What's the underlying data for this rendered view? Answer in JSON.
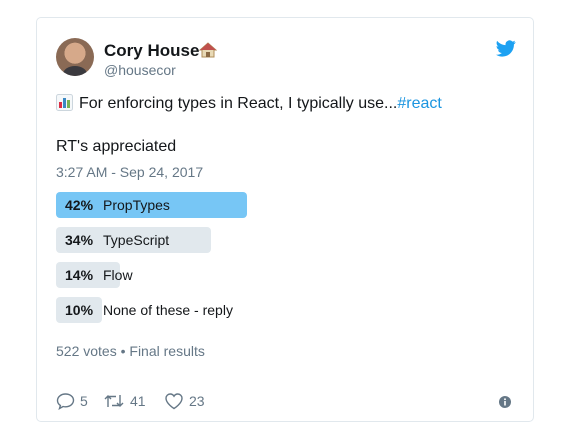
{
  "author": {
    "name": "Cory House",
    "handle": "@housecor",
    "name_emoji": "house-icon",
    "avatar": "avatar"
  },
  "tweet": {
    "text": "For enforcing types in React, I typically use...",
    "hashtag": "#react",
    "text_emoji": "bar-chart-icon",
    "rt_line": "RT's appreciated",
    "timestamp": "3:27 AM - Sep 24, 2017"
  },
  "poll": {
    "options": [
      {
        "percent": "42%",
        "share": 42,
        "label": "PropTypes",
        "winner": true
      },
      {
        "percent": "34%",
        "share": 34,
        "label": "TypeScript",
        "winner": false
      },
      {
        "percent": "14%",
        "share": 14,
        "label": "Flow",
        "winner": false
      },
      {
        "percent": "10%",
        "share": 10,
        "label": "None of these - reply",
        "winner": false
      }
    ],
    "summary": "522 votes • Final results"
  },
  "actions": {
    "replies": "5",
    "retweets": "41",
    "likes": "23"
  },
  "colors": {
    "accent": "#1da1f2",
    "winner_bar": "#77c6f5",
    "bar": "#e1e8ed",
    "secondary_text": "#657786"
  }
}
